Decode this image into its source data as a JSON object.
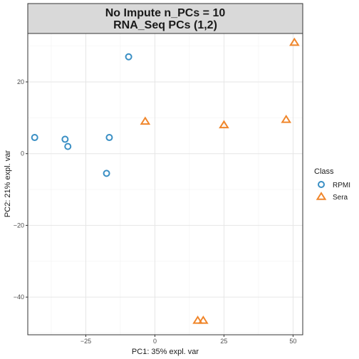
{
  "chart_data": {
    "type": "scatter",
    "title": "No Impute n_PCs = 10\nRNA_Seq PCs (1,2)",
    "xlabel": "PC1: 35% expl. var",
    "ylabel": "PC2: 21% expl. var",
    "xlim": [
      -46,
      53.5
    ],
    "ylim": [
      -50.5,
      33.5
    ],
    "xticks": [
      -25,
      0,
      25,
      50
    ],
    "yticks": [
      -40,
      -20,
      0,
      20
    ],
    "grid": true,
    "legend": {
      "title": "Class",
      "position": "right",
      "entries": [
        "RPMI",
        "Sera"
      ]
    },
    "series": [
      {
        "name": "RPMI",
        "marker": "circle",
        "color": "#3a8fc4",
        "points": [
          {
            "x": -43.5,
            "y": 4.5
          },
          {
            "x": -32.5,
            "y": 4.0
          },
          {
            "x": -31.5,
            "y": 2.0
          },
          {
            "x": -17.5,
            "y": -5.5
          },
          {
            "x": -16.5,
            "y": 4.5
          },
          {
            "x": -9.5,
            "y": 27.0
          }
        ]
      },
      {
        "name": "Sera",
        "marker": "triangle",
        "color": "#f0862b",
        "points": [
          {
            "x": -3.5,
            "y": 9.0
          },
          {
            "x": 15.5,
            "y": -46.5
          },
          {
            "x": 17.5,
            "y": -46.5
          },
          {
            "x": 25.0,
            "y": 8.0
          },
          {
            "x": 47.5,
            "y": 9.5
          },
          {
            "x": 50.5,
            "y": 31.0
          }
        ]
      }
    ]
  }
}
